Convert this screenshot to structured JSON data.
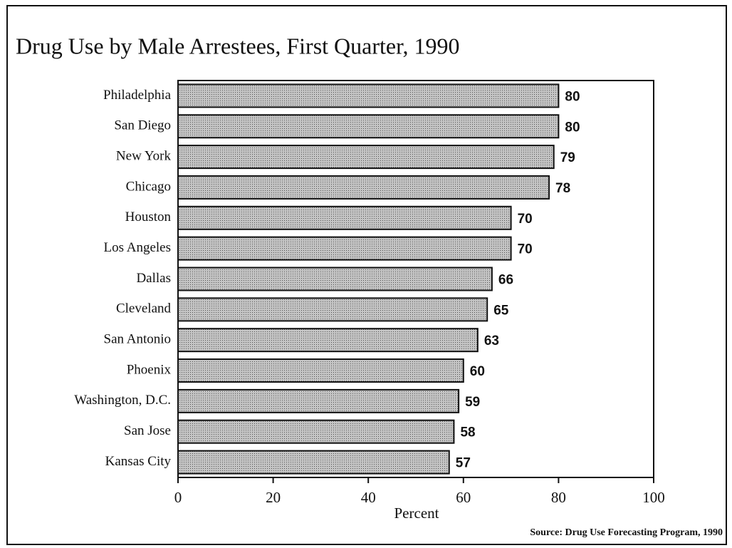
{
  "chart_data": {
    "type": "barh",
    "title": "Drug Use by Male Arrestees, First Quarter, 1990",
    "categories": [
      "Philadelphia",
      "San Diego",
      "New York",
      "Chicago",
      "Houston",
      "Los Angeles",
      "Dallas",
      "Cleveland",
      "San Antonio",
      "Phoenix",
      "Washington, D.C.",
      "San Jose",
      "Kansas City"
    ],
    "values": [
      80,
      80,
      79,
      78,
      70,
      70,
      66,
      65,
      63,
      60,
      59,
      58,
      57
    ],
    "color": "#c4c4c4",
    "xlabel": "Percent",
    "xlim": [
      0,
      100
    ],
    "xticks": [
      0,
      20,
      40,
      60,
      80,
      100
    ],
    "grid": false,
    "source": "Source:  Drug Use Forecasting Program, 1990"
  }
}
